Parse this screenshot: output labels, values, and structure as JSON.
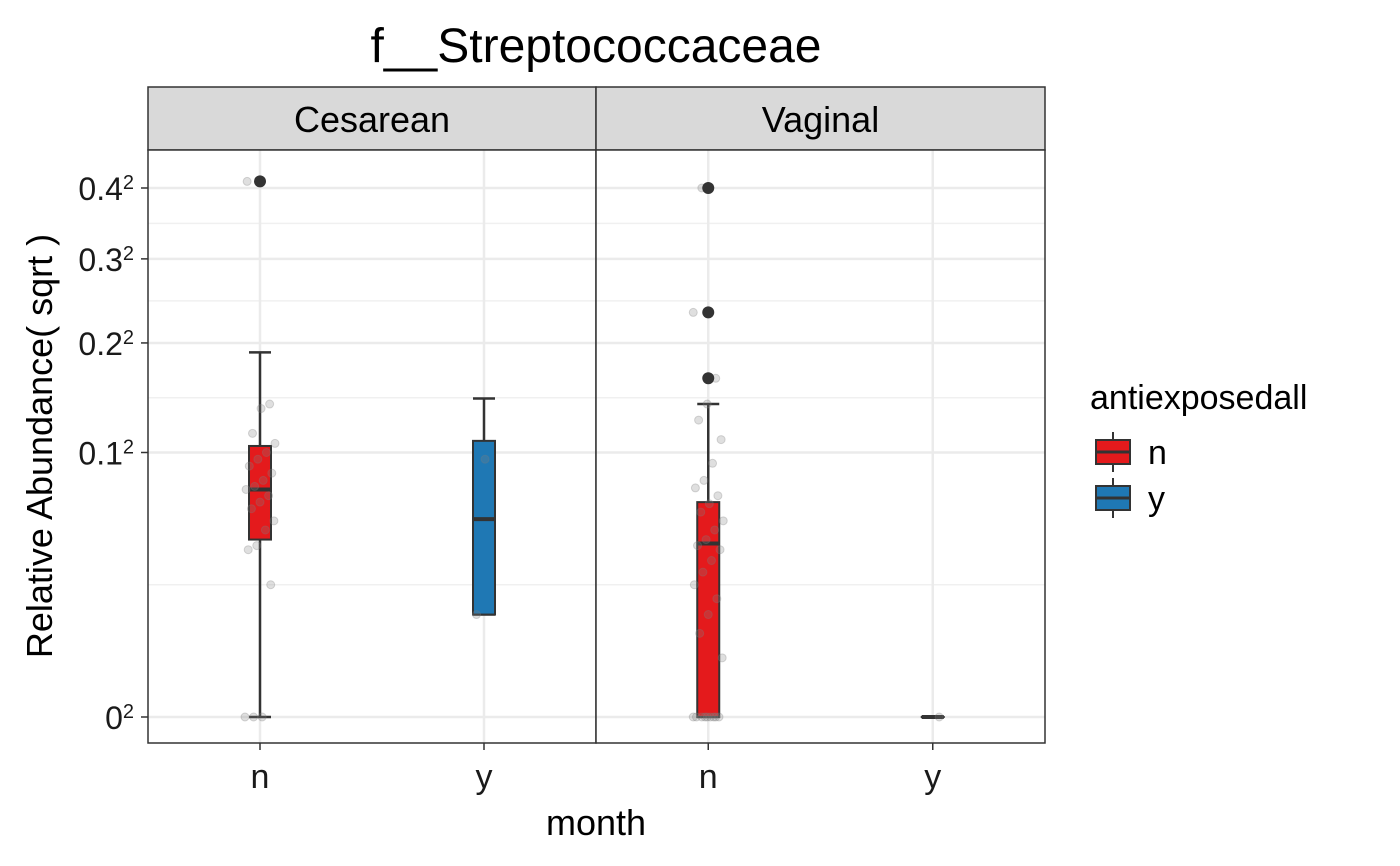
{
  "chart_data": {
    "type": "box",
    "title": "f__Streptococcaceae",
    "xlabel": "month",
    "ylabel": "Relative Abundance( sqrt )",
    "y_scale": "sqrt",
    "ylim": [
      0,
      0.42
    ],
    "y_ticks": [
      {
        "base": "0",
        "sup": "2",
        "value": 0
      },
      {
        "base": "0.1",
        "sup": "2",
        "value": 0.1
      },
      {
        "base": "0.2",
        "sup": "2",
        "value": 0.2
      },
      {
        "base": "0.3",
        "sup": "2",
        "value": 0.3
      },
      {
        "base": "0.4",
        "sup": "2",
        "value": 0.4
      }
    ],
    "grid": true,
    "legend_position": "right",
    "legend": {
      "title": "antiexposedall",
      "entries": [
        {
          "label": "n",
          "color": "#E41A1C"
        },
        {
          "label": "y",
          "color": "#1F78B4"
        }
      ]
    },
    "panels": [
      {
        "label": "Cesarean",
        "categories": [
          "n",
          "y"
        ],
        "boxes": [
          {
            "category": "n",
            "group": "n",
            "whisker_low": 0,
            "q1": 0.045,
            "median": 0.074,
            "q3": 0.105,
            "whisker_high": 0.19,
            "outliers": [
              0.41
            ],
            "points": [
              0,
              0,
              0,
              0.025,
              0.04,
              0.042,
              0.05,
              0.055,
              0.062,
              0.066,
              0.07,
              0.074,
              0.076,
              0.08,
              0.085,
              0.09,
              0.095,
              0.1,
              0.107,
              0.115,
              0.136,
              0.14,
              0.41
            ]
          },
          {
            "category": "y",
            "group": "y",
            "whisker_low": 0.015,
            "q1": 0.015,
            "median": 0.056,
            "q3": 0.109,
            "whisker_high": 0.145,
            "outliers": [],
            "points": [
              0.015,
              0.095
            ]
          }
        ]
      },
      {
        "label": "Vaginal",
        "categories": [
          "n",
          "y"
        ],
        "boxes": [
          {
            "category": "n",
            "group": "n",
            "whisker_low": 0,
            "q1": 0,
            "median": 0.043,
            "q3": 0.066,
            "whisker_high": 0.14,
            "outliers": [
              0.164,
              0.234,
              0.4
            ],
            "points": [
              0,
              0,
              0,
              0,
              0,
              0,
              0,
              0,
              0,
              0.005,
              0.01,
              0.015,
              0.02,
              0.025,
              0.03,
              0.035,
              0.04,
              0.042,
              0.045,
              0.05,
              0.055,
              0.06,
              0.065,
              0.07,
              0.075,
              0.08,
              0.092,
              0.11,
              0.126,
              0.14,
              0.164,
              0.234,
              0.4
            ]
          },
          {
            "category": "y",
            "group": "y",
            "whisker_low": 0,
            "q1": 0,
            "median": 0,
            "q3": 0,
            "whisker_high": 0,
            "outliers": [],
            "points": [
              0
            ]
          }
        ]
      }
    ]
  }
}
